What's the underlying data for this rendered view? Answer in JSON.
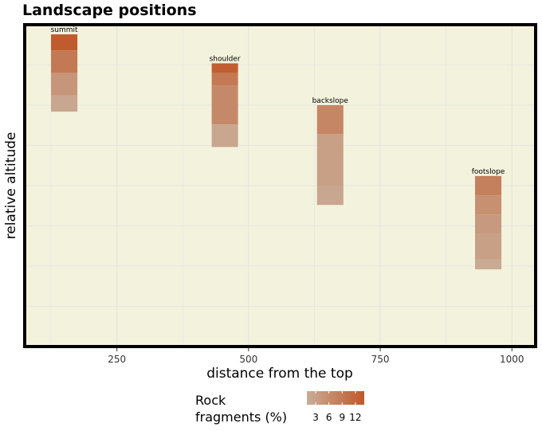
{
  "chart_data": {
    "type": "heatmap",
    "title": "Landscape positions",
    "xlabel": "distance from the top",
    "ylabel": "relative altitude",
    "xlim": [
      75,
      1045
    ],
    "ylim": [
      0,
      100
    ],
    "x_ticks": [
      250,
      500,
      750,
      1000
    ],
    "y_ticks": [
      12.5,
      37.5,
      62.5,
      87.5
    ],
    "grid": true,
    "colors": {
      "panel_background": "#f3f2dc",
      "grid": "#e2e2e6",
      "border": "#000000",
      "scale_low": "#c9ad97",
      "scale_high": "#c0582a"
    },
    "fill_label": "Rock fragments (%)",
    "legend": {
      "title_lines": [
        "Rock",
        "fragments (%)"
      ],
      "position": "bottom",
      "ticks": [
        3,
        6,
        9,
        12
      ],
      "range": [
        1,
        14
      ]
    },
    "series": [
      {
        "name": "summit",
        "x": [
          125,
          175
        ],
        "layers": [
          {
            "top": 97,
            "bottom": 92,
            "value": 13.5
          },
          {
            "top": 92,
            "bottom": 85,
            "value": 9
          },
          {
            "top": 85,
            "bottom": 78,
            "value": 4.5
          },
          {
            "top": 78,
            "bottom": 73,
            "value": 2
          }
        ]
      },
      {
        "name": "shoulder",
        "x": [
          430,
          480
        ],
        "layers": [
          {
            "top": 88,
            "bottom": 85,
            "value": 13
          },
          {
            "top": 85,
            "bottom": 81,
            "value": 9
          },
          {
            "top": 81,
            "bottom": 69,
            "value": 6.5
          },
          {
            "top": 69,
            "bottom": 62,
            "value": 2
          }
        ]
      },
      {
        "name": "backslope",
        "x": [
          630,
          680
        ],
        "layers": [
          {
            "top": 75,
            "bottom": 66,
            "value": 7
          },
          {
            "top": 66,
            "bottom": 50,
            "value": 3
          },
          {
            "top": 50,
            "bottom": 44,
            "value": 2
          }
        ]
      },
      {
        "name": "footslope",
        "x": [
          930,
          980
        ],
        "layers": [
          {
            "top": 53,
            "bottom": 47,
            "value": 8
          },
          {
            "top": 47,
            "bottom": 41,
            "value": 5.5
          },
          {
            "top": 41,
            "bottom": 35,
            "value": 4
          },
          {
            "top": 35,
            "bottom": 27,
            "value": 3
          },
          {
            "top": 27,
            "bottom": 24,
            "value": 1.5
          }
        ]
      }
    ]
  }
}
